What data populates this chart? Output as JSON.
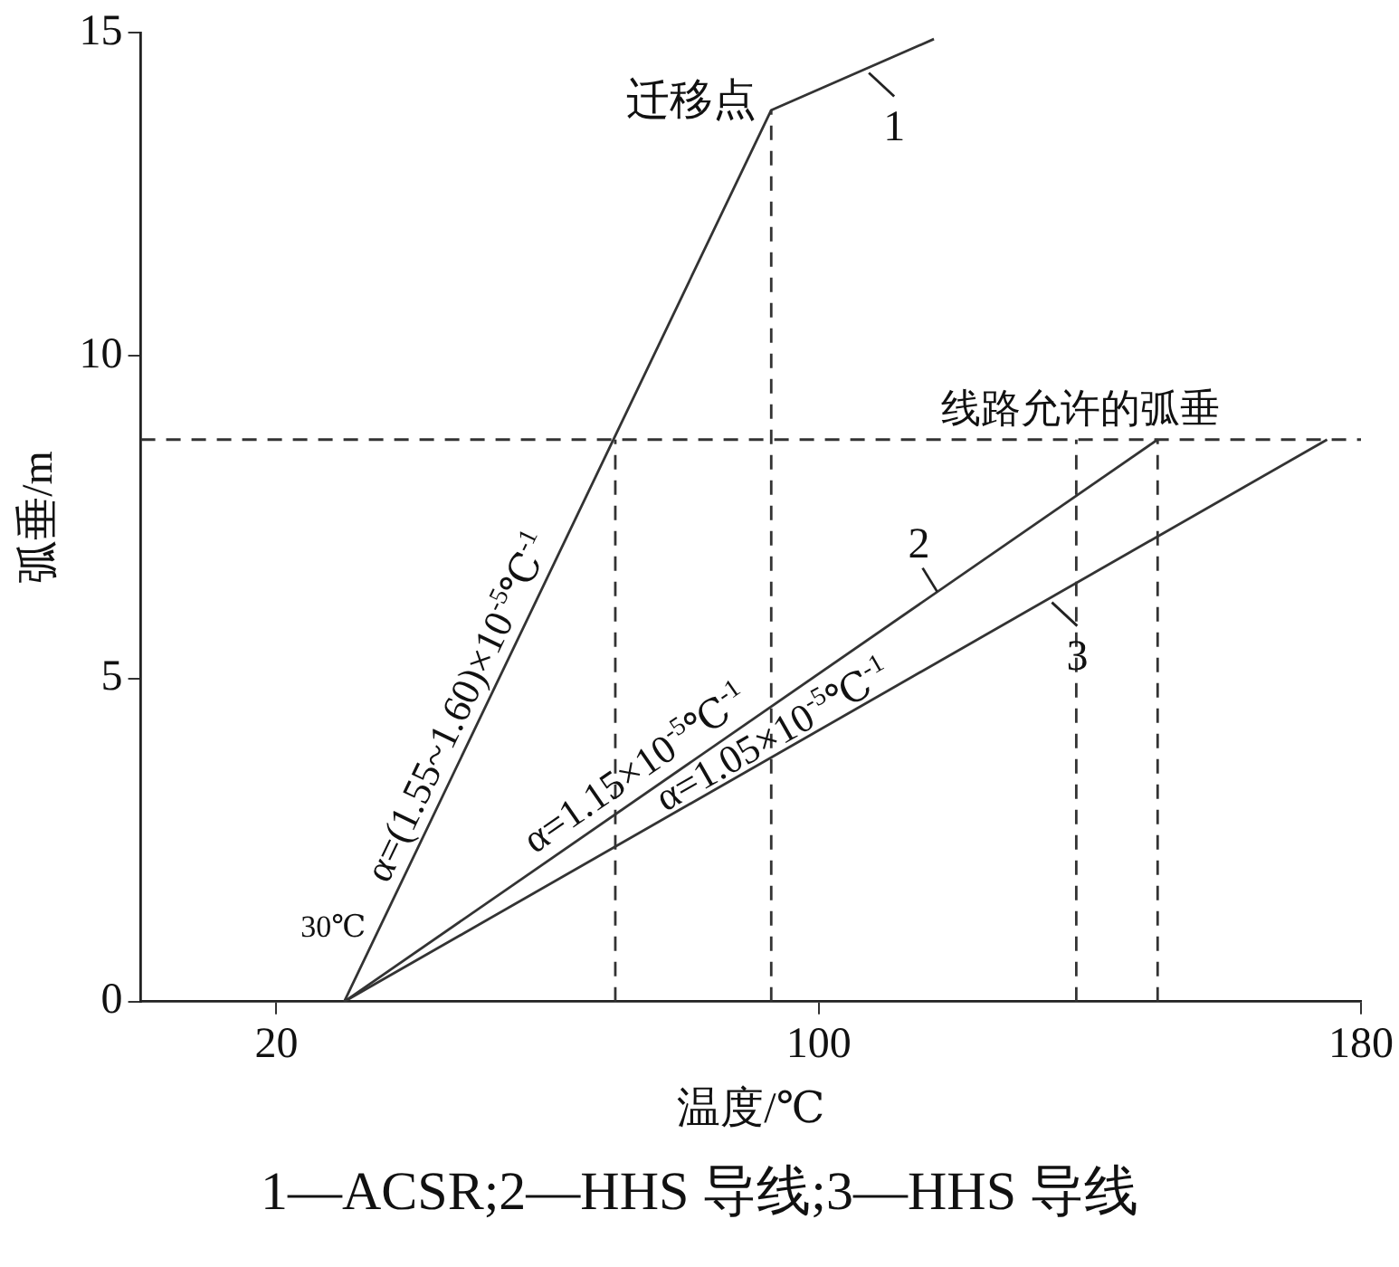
{
  "chart_data": {
    "type": "line",
    "xlabel": "温度/℃",
    "ylabel": "弧垂/m",
    "xlim": [
      0,
      180
    ],
    "xticks": [
      20,
      100,
      180
    ],
    "ylim": [
      0,
      15
    ],
    "yticks": [
      0,
      5,
      10,
      15
    ],
    "grid": false,
    "legend": false,
    "marker": "none",
    "line_style": "solid",
    "series": [
      {
        "name": "1",
        "color": "#333333",
        "x": [
          30,
          93,
          117
        ],
        "values": [
          0,
          13.8,
          14.9
        ]
      },
      {
        "name": "2",
        "color": "#333333",
        "x": [
          30,
          150
        ],
        "values": [
          0,
          8.7
        ]
      },
      {
        "name": "3",
        "color": "#333333",
        "x": [
          30,
          175
        ],
        "values": [
          0,
          8.7
        ]
      },
      {
        "color": "#333333",
        "line_style": "dashed",
        "x": [
          70,
          70
        ],
        "values": [
          0,
          8.7
        ]
      },
      {
        "color": "#333333",
        "line_style": "dashed",
        "x": [
          93,
          93
        ],
        "values": [
          0,
          13.8
        ]
      },
      {
        "color": "#333333",
        "line_style": "dashed",
        "x": [
          138,
          138
        ],
        "values": [
          0,
          8.7
        ]
      },
      {
        "color": "#333333",
        "line_style": "dashed",
        "x": [
          150,
          150
        ],
        "values": [
          0,
          8.7
        ]
      }
    ],
    "ref_lines": [
      {
        "axis": "y",
        "value": 8.7,
        "label": "线路允许的弧垂",
        "color": "#333333",
        "line_style": "dashed"
      }
    ],
    "annotations": [
      {
        "text": "迁移点",
        "x": 93,
        "y": 13.8
      },
      {
        "text": "30℃",
        "x": 30,
        "y": 0
      },
      {
        "text": "α=(1.55~1.60)×10$^{-5}$℃$^{-1}$",
        "x": 50,
        "y": 4.4
      },
      {
        "text": "α=1.15×10$^{-5}$℃$^{-1}$",
        "x": 75,
        "y": 3.3
      },
      {
        "text": "α=1.05×10$^{-5}$℃$^{-1}$",
        "x": 95,
        "y": 3.8
      },
      "1—ACSR;2—HHS 导线;3—HHS 导线"
    ]
  }
}
